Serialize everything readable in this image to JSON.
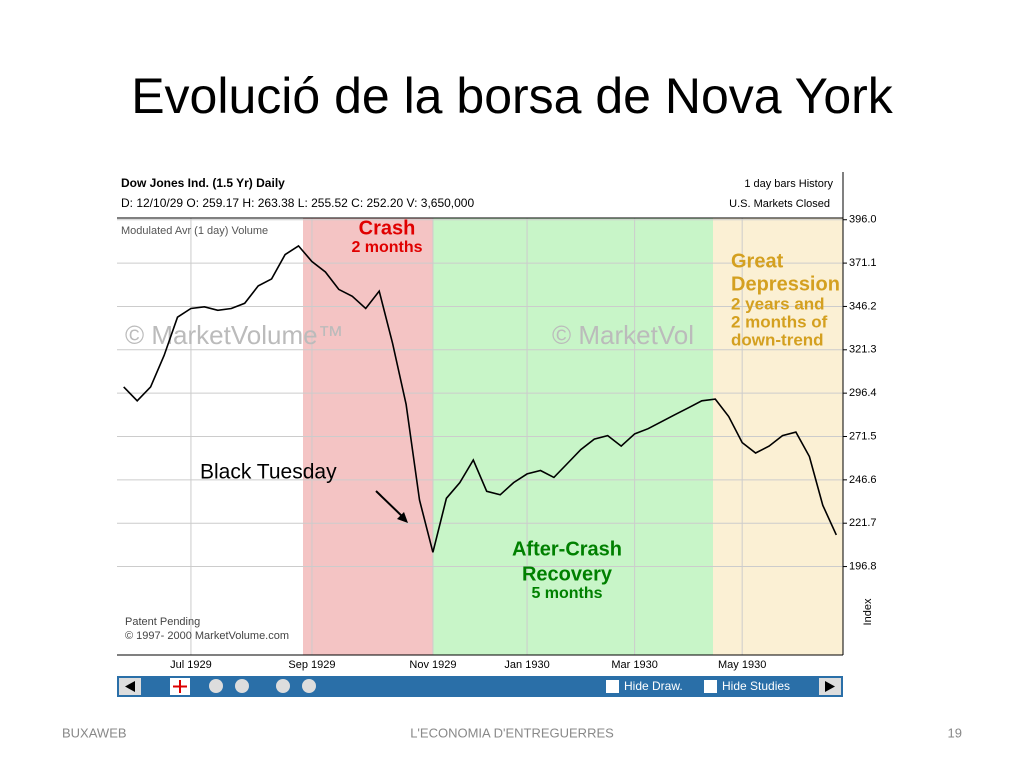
{
  "slide": {
    "title": "Evolució de la borsa de Nova York",
    "footer_left": "BUXAWEB",
    "footer_center": "L'ECONOMIA D'ENTREGUERRES",
    "page_number": "19"
  },
  "chart_data": {
    "type": "line",
    "color": "#000000",
    "grid": true,
    "header": {
      "name": "Dow Jones Ind. (1.5 Yr) Daily",
      "quote": "D: 12/10/29  O: 259.17  H: 263.38  L: 255.52  C: 252.20  V: 3,650,000",
      "bars": "1 day bars  History",
      "status": "U.S. Markets Closed",
      "study": "Modulated Avr (1 day) Volume"
    },
    "watermark": "© MarketVolume™",
    "watermark2": "© MarketVol",
    "notice": [
      "Patent Pending",
      "© 1997- 2000 MarketVolume.com"
    ],
    "y_axis_label": "Index",
    "toolbar": {
      "hide_draw": "Hide Draw.",
      "hide_studies": "Hide Studies"
    },
    "annotations": {
      "crash": [
        "Crash",
        "2 months"
      ],
      "depression": [
        "Great",
        "Depression",
        "2 years and",
        "2 months of",
        "down-trend"
      ],
      "black_tuesday": "Black Tuesday",
      "recovery": [
        "After-Crash",
        "Recovery",
        "5 months"
      ]
    },
    "categories": [
      null,
      null,
      null,
      null,
      null,
      "Jul 1929",
      null,
      null,
      null,
      null,
      null,
      null,
      null,
      null,
      "Sep 1929",
      null,
      null,
      null,
      null,
      null,
      null,
      null,
      null,
      "Nov 1929",
      null,
      null,
      null,
      null,
      null,
      null,
      "Jan 1930",
      null,
      null,
      null,
      null,
      null,
      null,
      null,
      "Mar 1930",
      null,
      null,
      null,
      null,
      null,
      null,
      null,
      "May 1930",
      null,
      null,
      null,
      null,
      null,
      null,
      null
    ],
    "values": [
      300,
      292,
      300,
      318,
      340,
      345,
      346,
      344,
      345,
      348,
      358,
      362,
      376,
      381,
      372,
      366,
      356,
      352,
      345,
      355,
      325,
      290,
      235,
      205,
      236,
      245,
      258,
      240,
      238,
      245,
      250,
      252,
      248,
      256,
      264,
      270,
      272,
      266,
      273,
      276,
      280,
      284,
      288,
      292,
      293,
      283,
      268,
      262,
      266,
      272,
      274,
      260,
      232,
      215
    ],
    "ylim": [
      146,
      397
    ],
    "yticks": [
      {
        "value": 396,
        "label": "396.0"
      },
      371.1,
      346.2,
      321.3,
      296.4,
      271.5,
      246.6,
      221.7,
      196.8
    ]
  }
}
